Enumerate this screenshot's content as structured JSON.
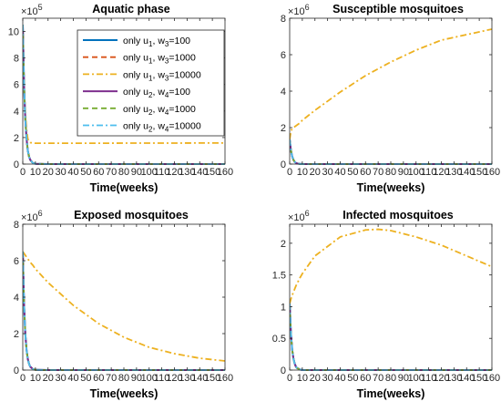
{
  "chart_data": [
    {
      "type": "line",
      "title": "Aquatic phase",
      "xlabel": "Time(weeks)",
      "ylabel": "",
      "y_multiplier": {
        "base": "×10",
        "exp": "5"
      },
      "xlim": [
        0,
        160
      ],
      "ylim": [
        0,
        11
      ],
      "xticks": [
        0,
        10,
        20,
        30,
        40,
        50,
        60,
        70,
        80,
        90,
        100,
        110,
        120,
        130,
        140,
        150,
        160
      ],
      "yticks": [
        0,
        2,
        4,
        6,
        8,
        10
      ],
      "x": [
        0,
        1,
        2,
        3,
        4,
        5,
        6,
        8,
        10,
        20,
        40,
        60,
        80,
        100,
        120,
        140,
        160
      ],
      "series": [
        {
          "name": "only u1, w3=100",
          "color": "#0072BD",
          "style": "solid",
          "values": [
            10.5,
            6.0,
            3.4,
            1.9,
            1.0,
            0.55,
            0.3,
            0.08,
            0.02,
            0,
            0,
            0,
            0,
            0,
            0,
            0,
            0
          ]
        },
        {
          "name": "only u1, w3=1000",
          "color": "#D95319",
          "style": "dashed",
          "values": [
            10.5,
            6.0,
            3.4,
            1.9,
            1.0,
            0.55,
            0.3,
            0.08,
            0.02,
            0,
            0,
            0,
            0,
            0,
            0,
            0,
            0
          ]
        },
        {
          "name": "only u1, w3=10000",
          "color": "#EDB120",
          "style": "dashdot",
          "values": [
            10.5,
            6.0,
            4.0,
            2.6,
            1.9,
            1.7,
            1.62,
            1.58,
            1.57,
            1.57,
            1.57,
            1.57,
            1.58,
            1.58,
            1.58,
            1.59,
            1.59
          ]
        },
        {
          "name": "only u2, w4=100",
          "color": "#7E2F8E",
          "style": "solid",
          "values": [
            10.5,
            6.0,
            3.4,
            1.9,
            1.0,
            0.55,
            0.3,
            0.08,
            0.02,
            0,
            0,
            0,
            0,
            0,
            0,
            0,
            0
          ]
        },
        {
          "name": "only u2, w4=1000",
          "color": "#77AC30",
          "style": "dashed",
          "values": [
            10.5,
            6.0,
            3.4,
            1.9,
            1.0,
            0.55,
            0.3,
            0.08,
            0.02,
            0,
            0,
            0,
            0,
            0,
            0,
            0,
            0
          ]
        },
        {
          "name": "only u2, w4=10000",
          "color": "#4DBEEE",
          "style": "dashdot",
          "values": [
            10.5,
            6.0,
            3.4,
            1.9,
            1.0,
            0.55,
            0.3,
            0.08,
            0.02,
            0,
            0,
            0,
            0,
            0,
            0,
            0,
            0
          ]
        }
      ],
      "legend": {
        "placement": "top-right",
        "entries": [
          {
            "prefix": "only u",
            "sub1": "1",
            "mid": ", w",
            "sub2": "3",
            "suffix": "=100"
          },
          {
            "prefix": "only u",
            "sub1": "1",
            "mid": ", w",
            "sub2": "3",
            "suffix": "=1000"
          },
          {
            "prefix": "only u",
            "sub1": "1",
            "mid": ", w",
            "sub2": "3",
            "suffix": "=10000"
          },
          {
            "prefix": "only u",
            "sub1": "2",
            "mid": ", w",
            "sub2": "4",
            "suffix": "=100"
          },
          {
            "prefix": "only u",
            "sub1": "2",
            "mid": ", w",
            "sub2": "4",
            "suffix": "=1000"
          },
          {
            "prefix": "only u",
            "sub1": "2",
            "mid": ", w",
            "sub2": "4",
            "suffix": "=10000"
          }
        ]
      }
    },
    {
      "type": "line",
      "title": "Susceptible mosquitoes",
      "xlabel": "Time(weeks)",
      "ylabel": "",
      "y_multiplier": {
        "base": "×10",
        "exp": "6"
      },
      "xlim": [
        0,
        160
      ],
      "ylim": [
        0,
        8
      ],
      "xticks": [
        0,
        10,
        20,
        30,
        40,
        50,
        60,
        70,
        80,
        90,
        100,
        110,
        120,
        130,
        140,
        150,
        160
      ],
      "yticks": [
        0,
        2,
        4,
        6,
        8
      ],
      "x": [
        0,
        1,
        2,
        3,
        4,
        5,
        6,
        8,
        10,
        20,
        40,
        60,
        80,
        100,
        120,
        140,
        160
      ],
      "series": [
        {
          "name": "only u1, w3=100",
          "color": "#0072BD",
          "style": "solid",
          "values": [
            1.35,
            0.75,
            0.42,
            0.23,
            0.12,
            0.06,
            0.03,
            0.01,
            0,
            0,
            0,
            0,
            0,
            0,
            0,
            0,
            0
          ]
        },
        {
          "name": "only u1, w3=1000",
          "color": "#D95319",
          "style": "dashed",
          "values": [
            1.35,
            0.75,
            0.42,
            0.23,
            0.12,
            0.06,
            0.03,
            0.01,
            0,
            0,
            0,
            0,
            0,
            0,
            0,
            0,
            0
          ]
        },
        {
          "name": "only u1, w3=10000",
          "color": "#EDB120",
          "style": "dashdot",
          "values": [
            1.35,
            1.8,
            1.95,
            2.0,
            2.05,
            2.1,
            2.15,
            2.25,
            2.4,
            2.95,
            3.95,
            4.85,
            5.6,
            6.25,
            6.8,
            7.1,
            7.4
          ]
        },
        {
          "name": "only u2, w4=100",
          "color": "#7E2F8E",
          "style": "solid",
          "values": [
            1.35,
            0.75,
            0.42,
            0.23,
            0.12,
            0.06,
            0.03,
            0.01,
            0,
            0,
            0,
            0,
            0,
            0,
            0,
            0,
            0
          ]
        },
        {
          "name": "only u2, w4=1000",
          "color": "#77AC30",
          "style": "dashed",
          "values": [
            1.35,
            0.75,
            0.42,
            0.23,
            0.12,
            0.06,
            0.03,
            0.01,
            0,
            0,
            0,
            0,
            0,
            0,
            0,
            0,
            0
          ]
        },
        {
          "name": "only u2, w4=10000",
          "color": "#4DBEEE",
          "style": "dashdot",
          "values": [
            1.35,
            0.75,
            0.42,
            0.23,
            0.12,
            0.06,
            0.03,
            0.01,
            0,
            0,
            0,
            0,
            0,
            0,
            0,
            0,
            0
          ]
        }
      ]
    },
    {
      "type": "line",
      "title": "Exposed mosquitoes",
      "xlabel": "Time(weeks)",
      "ylabel": "",
      "y_multiplier": {
        "base": "×10",
        "exp": "6"
      },
      "xlim": [
        0,
        160
      ],
      "ylim": [
        0,
        8
      ],
      "xticks": [
        0,
        10,
        20,
        30,
        40,
        50,
        60,
        70,
        80,
        90,
        100,
        110,
        120,
        130,
        140,
        150,
        160
      ],
      "yticks": [
        0,
        2,
        4,
        6,
        8
      ],
      "x": [
        0,
        1,
        2,
        3,
        4,
        5,
        6,
        8,
        10,
        20,
        40,
        60,
        80,
        100,
        120,
        140,
        160
      ],
      "series": [
        {
          "name": "only u1, w3=100",
          "color": "#0072BD",
          "style": "solid",
          "values": [
            6.5,
            3.6,
            2.0,
            1.1,
            0.6,
            0.33,
            0.18,
            0.05,
            0.01,
            0,
            0,
            0,
            0,
            0,
            0,
            0,
            0
          ]
        },
        {
          "name": "only u1, w3=1000",
          "color": "#D95319",
          "style": "dashed",
          "values": [
            6.5,
            3.6,
            2.0,
            1.1,
            0.6,
            0.33,
            0.18,
            0.05,
            0.01,
            0,
            0,
            0,
            0,
            0,
            0,
            0,
            0
          ]
        },
        {
          "name": "only u1, w3=10000",
          "color": "#EDB120",
          "style": "dashdot",
          "values": [
            6.5,
            6.4,
            6.3,
            6.2,
            6.1,
            6.0,
            5.9,
            5.75,
            5.55,
            4.8,
            3.55,
            2.55,
            1.8,
            1.25,
            0.9,
            0.65,
            0.5
          ]
        },
        {
          "name": "only u2, w4=100",
          "color": "#7E2F8E",
          "style": "solid",
          "values": [
            6.5,
            3.6,
            2.0,
            1.1,
            0.6,
            0.33,
            0.18,
            0.05,
            0.01,
            0,
            0,
            0,
            0,
            0,
            0,
            0,
            0
          ]
        },
        {
          "name": "only u2, w4=1000",
          "color": "#77AC30",
          "style": "dashed",
          "values": [
            6.5,
            3.6,
            2.0,
            1.1,
            0.6,
            0.33,
            0.18,
            0.05,
            0.01,
            0,
            0,
            0,
            0,
            0,
            0,
            0,
            0
          ]
        },
        {
          "name": "only u2, w4=10000",
          "color": "#4DBEEE",
          "style": "dashdot",
          "values": [
            6.5,
            3.6,
            2.0,
            1.1,
            0.6,
            0.33,
            0.18,
            0.05,
            0.01,
            0,
            0,
            0,
            0,
            0,
            0,
            0,
            0
          ]
        }
      ]
    },
    {
      "type": "line",
      "title": "Infected mosquitoes",
      "xlabel": "Time(weeks)",
      "ylabel": "",
      "y_multiplier": {
        "base": "×10",
        "exp": "6"
      },
      "xlim": [
        0,
        160
      ],
      "ylim": [
        0,
        2.3
      ],
      "xticks": [
        0,
        10,
        20,
        30,
        40,
        50,
        60,
        70,
        80,
        90,
        100,
        110,
        120,
        130,
        140,
        150,
        160
      ],
      "yticks": [
        0,
        0.5,
        1,
        1.5,
        2
      ],
      "x": [
        0,
        1,
        2,
        3,
        4,
        5,
        6,
        8,
        10,
        20,
        40,
        60,
        70,
        80,
        100,
        120,
        140,
        160
      ],
      "series": [
        {
          "name": "only u1, w3=100",
          "color": "#0072BD",
          "style": "solid",
          "values": [
            1.05,
            0.58,
            0.32,
            0.18,
            0.1,
            0.05,
            0.03,
            0.01,
            0,
            0,
            0,
            0,
            0,
            0,
            0,
            0,
            0,
            0
          ]
        },
        {
          "name": "only u1, w3=1000",
          "color": "#D95319",
          "style": "dashed",
          "values": [
            1.05,
            0.58,
            0.32,
            0.18,
            0.1,
            0.05,
            0.03,
            0.01,
            0,
            0,
            0,
            0,
            0,
            0,
            0,
            0,
            0,
            0
          ]
        },
        {
          "name": "only u1, w3=10000",
          "color": "#EDB120",
          "style": "dashdot",
          "values": [
            1.05,
            1.12,
            1.18,
            1.23,
            1.28,
            1.33,
            1.37,
            1.45,
            1.52,
            1.8,
            2.1,
            2.21,
            2.22,
            2.2,
            2.1,
            1.97,
            1.8,
            1.63
          ]
        },
        {
          "name": "only u2, w4=100",
          "color": "#7E2F8E",
          "style": "solid",
          "values": [
            1.05,
            0.58,
            0.32,
            0.18,
            0.1,
            0.05,
            0.03,
            0.01,
            0,
            0,
            0,
            0,
            0,
            0,
            0,
            0,
            0,
            0
          ]
        },
        {
          "name": "only u2, w4=1000",
          "color": "#77AC30",
          "style": "dashed",
          "values": [
            1.05,
            0.58,
            0.32,
            0.18,
            0.1,
            0.05,
            0.03,
            0.01,
            0,
            0,
            0,
            0,
            0,
            0,
            0,
            0,
            0,
            0
          ]
        },
        {
          "name": "only u2, w4=10000",
          "color": "#4DBEEE",
          "style": "dashdot",
          "values": [
            1.05,
            0.58,
            0.32,
            0.18,
            0.1,
            0.05,
            0.03,
            0.01,
            0,
            0,
            0,
            0,
            0,
            0,
            0,
            0,
            0,
            0
          ]
        }
      ]
    }
  ]
}
